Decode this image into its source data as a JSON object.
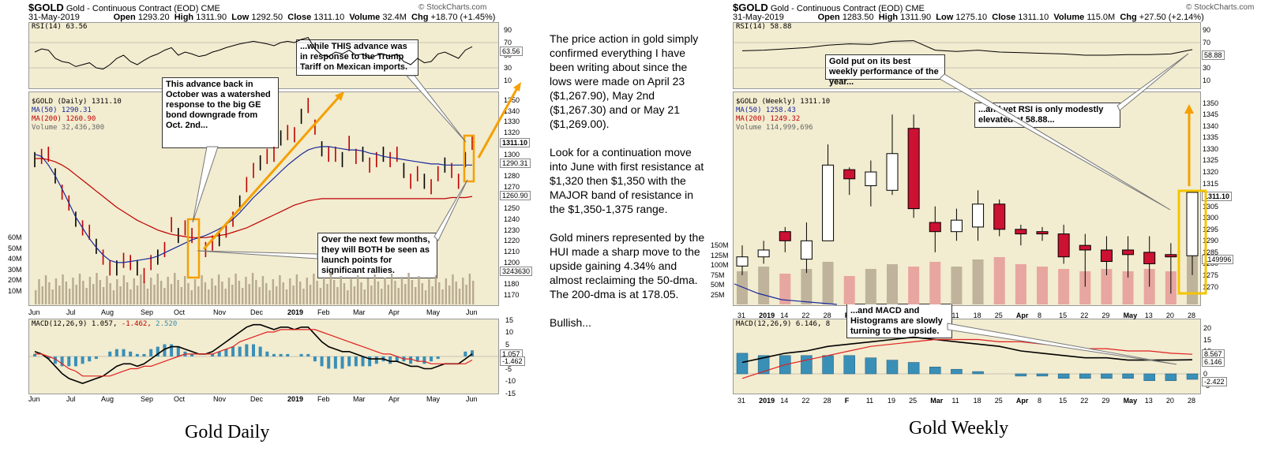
{
  "daily": {
    "symbol": "$GOLD",
    "name": "Gold - Continuous Contract (EOD)",
    "exchange": "CME",
    "date": "31-May-2019",
    "watermark": "© StockCharts.com",
    "open_label": "Open",
    "open": "1293.20",
    "high_label": "High",
    "high": "1311.90",
    "low_label": "Low",
    "low": "1292.50",
    "close_label": "Close",
    "close": "1311.10",
    "volume_label": "Volume",
    "volume": "32.4M",
    "chg_label": "Chg",
    "chg": "+18.70 (+1.45%)",
    "rsi_label": "RSI(14) 63.56",
    "rsi_value_tag": "63.56",
    "price_label": "$GOLD (Daily) 1311.10",
    "ma50_label": "MA(50) 1290.31",
    "ma200_label": "MA(200) 1260.90",
    "volume_legend": "Volume 32,436,300",
    "tag_close": "1311.10",
    "tag_ma50": "1290.31",
    "tag_ma200": "1260.90",
    "tag_vol": "3243630",
    "macd_label": "MACD(12,26,9)",
    "macd_v1": "1.057,",
    "macd_v2": "-1.462,",
    "macd_v3": "2.520",
    "macd_tag1": "1.057",
    "macd_tag2": "-1.462",
    "caption": "Gold Daily",
    "annotations": [
      "This advance back in October was a watershed response to the big GE bond downgrade from Oct. 2nd...",
      "...while THIS advance was in response to the Trump Tariff on Mexican imports.",
      "Over the next few months, they will BOTH be seen as launch points for significant rallies."
    ]
  },
  "weekly": {
    "symbol": "$GOLD",
    "name": "Gold - Continuous Contract (EOD)",
    "exchange": "CME",
    "date": "31-May-2019",
    "watermark": "© StockCharts.com",
    "open_label": "Open",
    "open": "1283.50",
    "high_label": "High",
    "high": "1311.90",
    "low_label": "Low",
    "low": "1275.10",
    "close_label": "Close",
    "close": "1311.10",
    "volume_label": "Volume",
    "volume": "115.0M",
    "chg_label": "Chg",
    "chg": "+27.50 (+2.14%)",
    "rsi_label": "RSI(14) 58.88",
    "rsi_value_tag": "58.88",
    "price_label": "$GOLD (Weekly) 1311.10",
    "ma50_label": "MA(50) 1258.43",
    "ma200_label": "MA(200) 1249.32",
    "volume_legend": "Volume 114,999,696",
    "tag_close": "1311.10",
    "tag_vol": "1149996",
    "macd_label": "MACD(12,26,9) 6.146, 8",
    "macd_tag1": "8.567",
    "macd_tag2": "6.146",
    "macd_tag3": "-2.422",
    "caption": "Gold Weekly",
    "annotations": [
      "Gold put on its best weekly performance of the year...",
      "...and yet RSI is only modestly elevated at 58.88...",
      "...and MACD and Histograms are slowly turning to the upside."
    ]
  },
  "commentary": [
    "The price action in gold simply confirmed everything I have been writing about since the lows were made on April 23 ($1,267.90), May 2nd ($1,267.30) and or May 21 ($1,269.00).",
    "Look for a continuation move into June with first resistance at $1,320 then $1,350 with the MAJOR band of resistance in the $1,350-1,375 range.",
    "Gold miners represented by the HUI made a sharp move to the upside gaining 4.34% and almost reclaiming the 50-dma. The 200-dma is at 178.05.",
    "Bullish..."
  ],
  "chart_data": [
    {
      "type": "line",
      "title": "Gold Daily",
      "price_ticks": [
        1170,
        1180,
        1190,
        1200,
        1210,
        1220,
        1230,
        1240,
        1250,
        1260,
        1270,
        1280,
        1290,
        1300,
        1310,
        1320,
        1330,
        1340,
        1350
      ],
      "rsi_ticks": [
        90,
        70,
        50,
        30,
        10
      ],
      "macd_ticks": [
        15,
        10,
        5,
        0,
        -5,
        -10,
        -15
      ],
      "volume_ticks": [
        "60M",
        "50M",
        "40M",
        "30M",
        "20M",
        "10M"
      ],
      "x_labels": [
        "Jun",
        "Jul",
        "Aug",
        "Sep",
        "Oct",
        "Nov",
        "Dec",
        "2019",
        "Feb",
        "Mar",
        "Apr",
        "May",
        "Jun"
      ],
      "x_bold": [
        "2019"
      ],
      "series": [
        {
          "name": "$GOLD (Daily)",
          "values": [
            1295,
            1298,
            1300,
            1280,
            1265,
            1255,
            1240,
            1232,
            1228,
            1215,
            1205,
            1195,
            1195,
            1202,
            1200,
            1195,
            1188,
            1200,
            1205,
            1212,
            1235,
            1225,
            1232,
            1225,
            1220,
            1212,
            1218,
            1222,
            1230,
            1240,
            1255,
            1272,
            1285,
            1292,
            1298,
            1300,
            1315,
            1320,
            1318,
            1335,
            1345,
            1325,
            1305,
            1300,
            1300,
            1295,
            1310,
            1298,
            1300,
            1290,
            1295,
            1300,
            1295,
            1300,
            1285,
            1275,
            1282,
            1275,
            1270,
            1282,
            1290,
            1285,
            1275,
            1295,
            1311
          ]
        },
        {
          "name": "MA(50)",
          "values": [
            1300,
            1298,
            1290,
            1280,
            1268,
            1255,
            1242,
            1232,
            1222,
            1214,
            1207,
            1202,
            1200,
            1200,
            1201,
            1202,
            1203,
            1204,
            1206,
            1209,
            1212,
            1215,
            1218,
            1221,
            1223,
            1225,
            1228,
            1231,
            1235,
            1240,
            1246,
            1253,
            1260,
            1266,
            1272,
            1278,
            1284,
            1290,
            1295,
            1300,
            1304,
            1306,
            1307,
            1307,
            1306,
            1305,
            1304,
            1304,
            1303,
            1301,
            1300,
            1298,
            1297,
            1296,
            1295,
            1294,
            1293,
            1292,
            1291,
            1291,
            1290,
            1290,
            1290,
            1290,
            1290
          ]
        },
        {
          "name": "MA(200)",
          "values": [
            1296,
            1296,
            1295,
            1293,
            1290,
            1286,
            1281,
            1276,
            1271,
            1266,
            1261,
            1256,
            1251,
            1247,
            1243,
            1239,
            1236,
            1233,
            1230,
            1228,
            1226,
            1225,
            1224,
            1223,
            1223,
            1223,
            1224,
            1225,
            1226,
            1228,
            1230,
            1232,
            1235,
            1238,
            1241,
            1244,
            1247,
            1250,
            1253,
            1255,
            1257,
            1258,
            1259,
            1259,
            1259,
            1259,
            1259,
            1259,
            1259,
            1259,
            1259,
            1259,
            1259,
            1259,
            1259,
            1259,
            1259,
            1259,
            1259,
            1259,
            1259,
            1260,
            1260,
            1260,
            1261
          ]
        },
        {
          "name": "RSI(14)",
          "values": [
            55,
            60,
            58,
            45,
            40,
            38,
            32,
            35,
            38,
            30,
            28,
            35,
            45,
            50,
            40,
            35,
            42,
            48,
            52,
            58,
            62,
            50,
            55,
            52,
            48,
            50,
            55,
            58,
            62,
            65,
            68,
            70,
            72,
            70,
            68,
            65,
            70,
            72,
            70,
            75,
            78,
            60,
            50,
            48,
            55,
            52,
            58,
            50,
            52,
            45,
            50,
            52,
            48,
            52,
            40,
            35,
            45,
            38,
            40,
            52,
            55,
            50,
            45,
            58,
            63.56
          ]
        },
        {
          "name": "MACD",
          "values": [
            2,
            1,
            -1,
            -4,
            -7,
            -9,
            -10,
            -11,
            -10,
            -9,
            -8,
            -6,
            -4,
            -3,
            -3,
            -4,
            -3,
            -1,
            1,
            3,
            4,
            4,
            3,
            2,
            1,
            1,
            2,
            4,
            6,
            8,
            10,
            12,
            13,
            13,
            12,
            11,
            12,
            12,
            11,
            12,
            12,
            9,
            6,
            4,
            3,
            2,
            2,
            1,
            0,
            -1,
            -1,
            -1,
            -2,
            -2,
            -3,
            -4,
            -4,
            -5,
            -5,
            -4,
            -3,
            -3,
            -3,
            -1,
            1.057
          ]
        },
        {
          "name": "Signal",
          "values": [
            1,
            1,
            0,
            -1,
            -3,
            -5,
            -6,
            -8,
            -8,
            -8,
            -8,
            -8,
            -7,
            -6,
            -5,
            -5,
            -4,
            -4,
            -3,
            -2,
            -1,
            0,
            1,
            1,
            1,
            1,
            1,
            2,
            3,
            4,
            6,
            7,
            8,
            9,
            10,
            10,
            11,
            11,
            11,
            11,
            11,
            11,
            10,
            9,
            8,
            7,
            6,
            5,
            4,
            3,
            2,
            1,
            1,
            0,
            -1,
            -1,
            -2,
            -2,
            -3,
            -3,
            -3,
            -3,
            -3,
            -3,
            -1.462
          ]
        }
      ]
    },
    {
      "type": "bar",
      "title": "Gold Weekly",
      "categories": [
        "31",
        "2019",
        "14",
        "22",
        "28",
        "F",
        "11",
        "19",
        "25",
        "Mar",
        "11",
        "18",
        "25",
        "Apr",
        "8",
        "15",
        "22",
        "29",
        "May",
        "13",
        "20",
        "28"
      ],
      "price_ticks": [
        1270,
        1275,
        1280,
        1285,
        1290,
        1295,
        1300,
        1305,
        1310,
        1315,
        1320,
        1325,
        1330,
        1335,
        1340,
        1345,
        1350
      ],
      "rsi_ticks": [
        90,
        70,
        50,
        30,
        10
      ],
      "macd_ticks": [
        20,
        15,
        10,
        5,
        0,
        -5
      ],
      "volume_ticks": [
        "150M",
        "125M",
        "100M",
        "75M",
        "50M",
        "25M"
      ],
      "series": [
        {
          "name": "Open",
          "values": [
            1279,
            1283,
            1294,
            1282,
            1290,
            1321,
            1314,
            1312,
            1339,
            1298,
            1294,
            1296,
            1306,
            1295,
            1294,
            1293,
            1288,
            1286,
            1286,
            1285,
            1284,
            1283.5
          ]
        },
        {
          "name": "Close",
          "values": [
            1283,
            1286,
            1290,
            1290,
            1323,
            1317,
            1320,
            1328,
            1304,
            1294,
            1299,
            1306,
            1295,
            1293,
            1293,
            1283,
            1286,
            1281,
            1284,
            1280,
            1283,
            1311.1
          ]
        },
        {
          "name": "High",
          "values": [
            1288,
            1290,
            1296,
            1298,
            1332,
            1322,
            1325,
            1345,
            1345,
            1305,
            1304,
            1312,
            1308,
            1297,
            1296,
            1297,
            1293,
            1292,
            1292,
            1292,
            1289,
            1311.9
          ]
        },
        {
          "name": "Low",
          "values": [
            1275,
            1280,
            1285,
            1276,
            1290,
            1310,
            1305,
            1310,
            1300,
            1285,
            1290,
            1290,
            1292,
            1288,
            1290,
            1280,
            1270,
            1275,
            1274,
            1270,
            1267,
            1275.1
          ]
        },
        {
          "name": "Volume",
          "values": [
            70,
            80,
            65,
            75,
            90,
            60,
            75,
            85,
            80,
            90,
            80,
            95,
            100,
            85,
            80,
            75,
            70,
            75,
            70,
            75,
            70,
            115
          ]
        },
        {
          "name": "RSI(14)",
          "values": [
            57,
            58,
            60,
            62,
            66,
            68,
            67,
            72,
            73,
            58,
            56,
            58,
            55,
            54,
            53,
            52,
            50,
            50,
            51,
            51,
            52,
            58.88
          ]
        },
        {
          "name": "MACD",
          "values": [
            5,
            7,
            9,
            10,
            12,
            13,
            14,
            15,
            16,
            15,
            14,
            13,
            12,
            10,
            9,
            8,
            7,
            7,
            6,
            6,
            6,
            6.146
          ]
        },
        {
          "name": "Signal",
          "values": [
            -2,
            1,
            4,
            6,
            8,
            10,
            12,
            13,
            14,
            15,
            15,
            15,
            14,
            14,
            13,
            12,
            11,
            11,
            10,
            10,
            9,
            8.567
          ]
        },
        {
          "name": "Histogram",
          "values": [
            9,
            8,
            8,
            8,
            8,
            8,
            7,
            6,
            5,
            3,
            2,
            1,
            0,
            -1,
            -1,
            -2,
            -2,
            -2,
            -2,
            -3,
            -3,
            -2.422
          ]
        }
      ]
    }
  ]
}
